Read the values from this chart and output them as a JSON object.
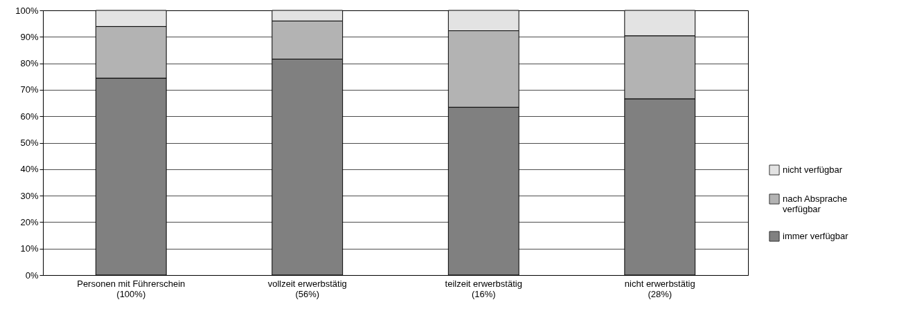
{
  "chart_data": {
    "type": "bar",
    "stacked": true,
    "categories": [
      "Personen mit Führerschein\n(100%)",
      "vollzeit erwerbstätig\n(56%)",
      "teilzeit erwerbstätig\n(16%)",
      "nicht erwerbstätig\n(28%)"
    ],
    "series": [
      {
        "name": "immer verfügbar",
        "color": "#808080",
        "values": [
          74.4,
          81.6,
          63.4,
          66.6
        ]
      },
      {
        "name": "nach Absprache verfügbar",
        "color": "#b3b3b3",
        "values": [
          19.5,
          14.4,
          28.9,
          23.8
        ]
      },
      {
        "name": "nicht verfügbar",
        "color": "#e3e3e3",
        "values": [
          6.1,
          4.0,
          7.7,
          9.6
        ]
      }
    ],
    "ylim": [
      0,
      100
    ],
    "yticks": [
      {
        "value": 0,
        "label": "0%"
      },
      {
        "value": 10,
        "label": "10%"
      },
      {
        "value": 20,
        "label": "20%"
      },
      {
        "value": 30,
        "label": "30%"
      },
      {
        "value": 40,
        "label": "40%"
      },
      {
        "value": 50,
        "label": "50%"
      },
      {
        "value": 60,
        "label": "60%"
      },
      {
        "value": 70,
        "label": "70%"
      },
      {
        "value": 80,
        "label": "80%"
      },
      {
        "value": 90,
        "label": "90%"
      },
      {
        "value": 100,
        "label": "100%"
      }
    ],
    "grid": "y",
    "legend": "right"
  }
}
